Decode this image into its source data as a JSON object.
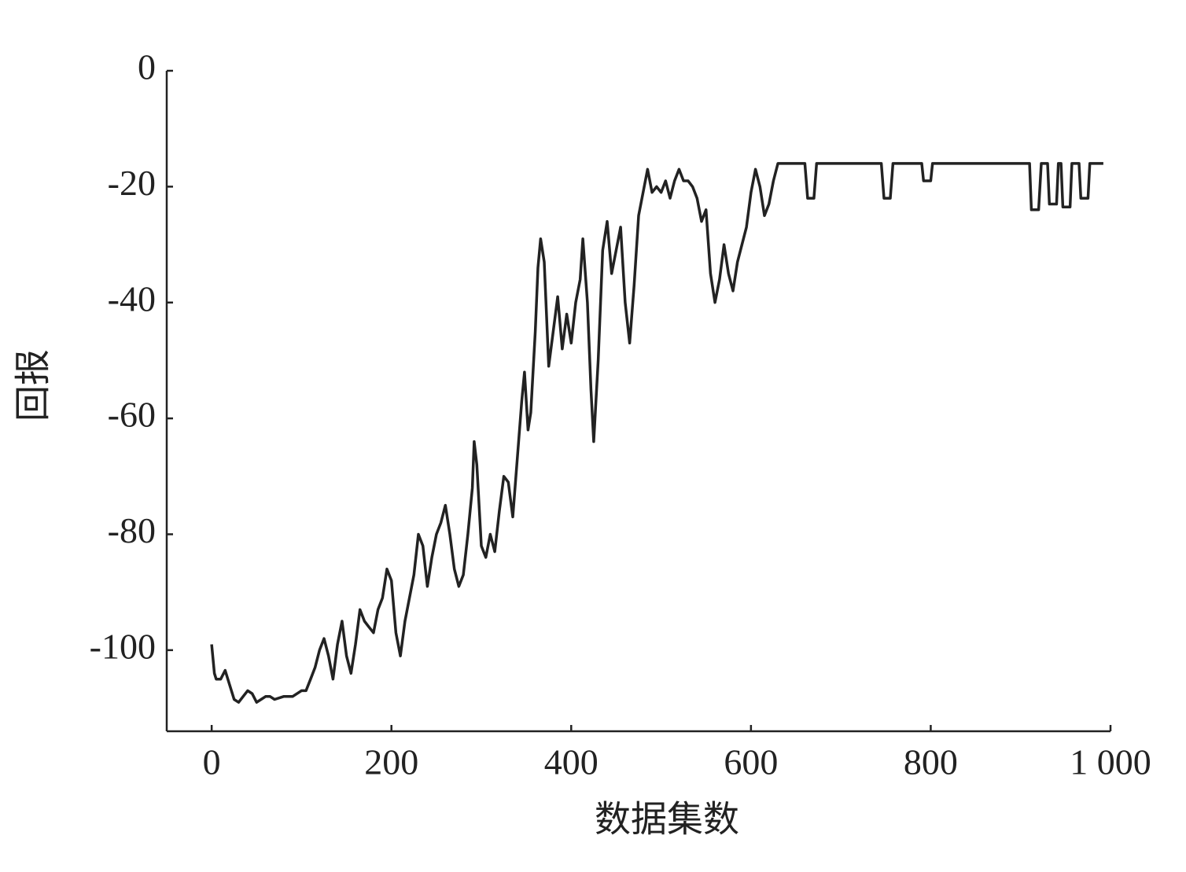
{
  "chart_data": {
    "type": "line",
    "xlabel": "数据集数",
    "ylabel": "回报",
    "xlim": [
      -50,
      1000
    ],
    "ylim": [
      -114,
      0
    ],
    "xticks": [
      0,
      200,
      400,
      600,
      800,
      {
        "value": 1000,
        "label": "1 000"
      }
    ],
    "yticks": [
      0,
      -20,
      -40,
      -60,
      -80,
      -100
    ],
    "series": [
      {
        "color": "#222222",
        "x": [
          0,
          3,
          5,
          10,
          15,
          20,
          25,
          30,
          35,
          40,
          45,
          50,
          55,
          60,
          65,
          70,
          80,
          90,
          100,
          105,
          110,
          115,
          120,
          125,
          130,
          135,
          140,
          145,
          150,
          155,
          160,
          165,
          170,
          175,
          180,
          185,
          190,
          195,
          200,
          205,
          210,
          215,
          220,
          225,
          230,
          235,
          240,
          245,
          250,
          255,
          260,
          265,
          270,
          275,
          280,
          285,
          290,
          292,
          295,
          300,
          305,
          310,
          315,
          320,
          325,
          330,
          335,
          340,
          345,
          348,
          352,
          355,
          360,
          363,
          366,
          370,
          375,
          380,
          385,
          390,
          395,
          400,
          405,
          410,
          413,
          418,
          422,
          425,
          430,
          435,
          440,
          445,
          450,
          455,
          460,
          465,
          470,
          475,
          480,
          485,
          490,
          495,
          500,
          505,
          510,
          515,
          520,
          525,
          530,
          535,
          540,
          545,
          550,
          555,
          560,
          565,
          570,
          575,
          580,
          585,
          590,
          595,
          600,
          605,
          610,
          615,
          620,
          625,
          630,
          660,
          663,
          670,
          673,
          745,
          748,
          755,
          758,
          790,
          792,
          800,
          802,
          910,
          912,
          920,
          923,
          930,
          932,
          940,
          942,
          945,
          947,
          955,
          957,
          965,
          967,
          975,
          977,
          992
        ],
        "values": [
          -99,
          -104,
          -105,
          -105,
          -103.5,
          -106,
          -108.5,
          -109,
          -108,
          -107,
          -107.5,
          -109,
          -108.5,
          -108,
          -108,
          -108.5,
          -108,
          -108,
          -107,
          -107,
          -105,
          -103,
          -100,
          -98,
          -101,
          -105,
          -99,
          -95,
          -101,
          -104,
          -99,
          -93,
          -95,
          -96,
          -97,
          -93,
          -91,
          -86,
          -88,
          -97,
          -101,
          -95,
          -91,
          -87,
          -80,
          -82,
          -89,
          -84,
          -80,
          -78,
          -75,
          -80,
          -86,
          -89,
          -87,
          -80,
          -72,
          -64,
          -68,
          -82,
          -84,
          -80,
          -83,
          -76,
          -70,
          -71,
          -77,
          -67,
          -57,
          -52,
          -62,
          -59,
          -45,
          -34,
          -29,
          -33,
          -51,
          -45,
          -39,
          -48,
          -42,
          -47,
          -40,
          -36,
          -29,
          -40,
          -55,
          -64,
          -50,
          -31,
          -26,
          -35,
          -31,
          -27,
          -40,
          -47,
          -37,
          -25,
          -21,
          -17,
          -21,
          -20,
          -21,
          -19,
          -22,
          -19,
          -17,
          -19,
          -19,
          -20,
          -22,
          -26,
          -24,
          -35,
          -40,
          -36,
          -30,
          -35,
          -38,
          -33,
          -30,
          -27,
          -21,
          -17,
          -20,
          -25,
          -23,
          -19,
          -16,
          -16,
          -22,
          -22,
          -16,
          -16,
          -22,
          -22,
          -16,
          -16,
          -19,
          -19,
          -16,
          -16,
          -24,
          -24,
          -16,
          -16,
          -23,
          -23,
          -16,
          -16,
          -23.5,
          -23.5,
          -16,
          -16,
          -22,
          -22,
          -16,
          -16
        ]
      }
    ]
  }
}
